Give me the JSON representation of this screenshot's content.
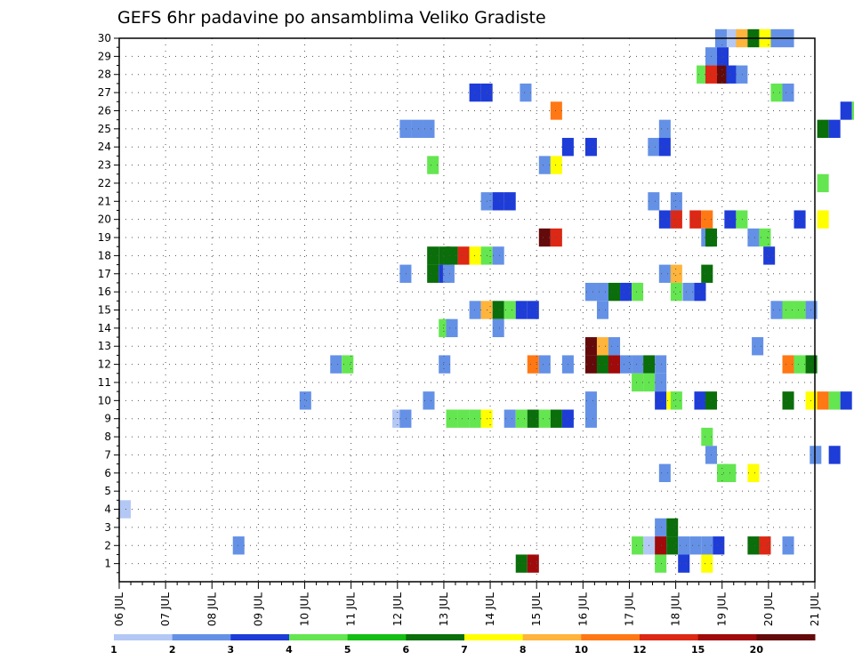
{
  "chart_data": {
    "type": "heatmap",
    "title": "GEFS 6hr padavine po ansamblima Veliko Gradiste",
    "y_ticks": [
      "1",
      "2",
      "3",
      "4",
      "5",
      "6",
      "7",
      "8",
      "9",
      "10",
      "11",
      "12",
      "13",
      "14",
      "15",
      "16",
      "17",
      "18",
      "19",
      "20",
      "21",
      "22",
      "23",
      "24",
      "25",
      "26",
      "27",
      "28",
      "29",
      "30"
    ],
    "x_ticks": [
      "06 JUL",
      "07 JUL",
      "08 JUL",
      "09 JUL",
      "10 JUL",
      "11 JUL",
      "12 JUL",
      "13 JUL",
      "14 JUL",
      "15 JUL",
      "16 JUL",
      "17 JUL",
      "18 JUL",
      "19 JUL",
      "20 JUL",
      "21 JUL"
    ],
    "x_range": [
      0,
      15
    ],
    "y_range": [
      0,
      30
    ],
    "grid": true,
    "colorbar": {
      "levels": [
        "1",
        "2",
        "3",
        "4",
        "5",
        "6",
        "7",
        "8",
        "10",
        "12",
        "15",
        "20"
      ],
      "colors": [
        "#b4c8f5",
        "#6491e6",
        "#1e3cd7",
        "#64e650",
        "#14be14",
        "#0a6e0a",
        "#ffff00",
        "#ffb43c",
        "#ff7814",
        "#dc2814",
        "#a00a0a",
        "#640a0a"
      ]
    },
    "cells": [
      [
        13.09,
        30,
        12
      ],
      [
        13.3,
        30,
        7
      ],
      [
        13.55,
        30,
        5
      ],
      [
        13.8,
        30,
        6
      ],
      [
        12.85,
        30,
        1
      ],
      [
        14.05,
        30,
        1
      ],
      [
        14.3,
        30,
        1
      ],
      [
        12.64,
        29,
        1
      ],
      [
        12.89,
        29,
        2
      ],
      [
        12.45,
        28,
        3
      ],
      [
        12.64,
        28,
        9
      ],
      [
        12.89,
        28,
        11
      ],
      [
        13.09,
        28,
        2
      ],
      [
        13.3,
        28,
        1
      ],
      [
        7.55,
        27,
        2
      ],
      [
        7.8,
        27,
        2
      ],
      [
        8.64,
        27,
        1
      ],
      [
        14.05,
        27,
        3
      ],
      [
        14.3,
        27,
        1
      ],
      [
        9.3,
        26,
        8
      ],
      [
        15.55,
        26,
        2
      ],
      [
        15.8,
        26,
        3
      ],
      [
        6.05,
        25,
        1
      ],
      [
        6.3,
        25,
        1
      ],
      [
        6.55,
        25,
        1
      ],
      [
        11.64,
        25,
        1
      ],
      [
        15.05,
        25,
        5
      ],
      [
        15.3,
        25,
        2
      ],
      [
        9.55,
        24,
        2
      ],
      [
        10.05,
        24,
        2
      ],
      [
        11.4,
        24,
        1
      ],
      [
        11.64,
        24,
        2
      ],
      [
        6.64,
        23,
        3
      ],
      [
        9.05,
        23,
        1
      ],
      [
        9.3,
        23,
        6
      ],
      [
        15.05,
        22,
        3
      ],
      [
        7.8,
        21,
        1
      ],
      [
        8.05,
        21,
        2
      ],
      [
        8.3,
        21,
        2
      ],
      [
        11.4,
        21,
        1
      ],
      [
        11.89,
        21,
        1
      ],
      [
        11.64,
        20,
        2
      ],
      [
        11.89,
        20,
        9
      ],
      [
        12.3,
        20,
        9
      ],
      [
        12.55,
        20,
        8
      ],
      [
        13.05,
        20,
        2
      ],
      [
        13.3,
        20,
        3
      ],
      [
        14.55,
        20,
        2
      ],
      [
        15.05,
        20,
        6
      ],
      [
        9.05,
        19,
        11
      ],
      [
        9.3,
        19,
        9
      ],
      [
        12.55,
        19,
        1
      ],
      [
        12.64,
        19,
        5
      ],
      [
        13.55,
        19,
        1
      ],
      [
        13.8,
        19,
        3
      ],
      [
        6.64,
        18,
        5
      ],
      [
        6.89,
        18,
        5
      ],
      [
        7.05,
        18,
        5
      ],
      [
        7.3,
        18,
        9
      ],
      [
        7.55,
        18,
        6
      ],
      [
        7.8,
        18,
        3
      ],
      [
        8.05,
        18,
        1
      ],
      [
        13.89,
        18,
        2
      ],
      [
        6.05,
        17,
        1
      ],
      [
        6.64,
        17,
        5
      ],
      [
        6.89,
        17,
        2
      ],
      [
        6.98,
        17,
        1
      ],
      [
        11.64,
        17,
        1
      ],
      [
        11.89,
        17,
        7
      ],
      [
        12.55,
        17,
        5
      ],
      [
        10.05,
        16,
        1
      ],
      [
        10.3,
        16,
        1
      ],
      [
        10.55,
        16,
        5
      ],
      [
        10.8,
        16,
        2
      ],
      [
        11.05,
        16,
        3
      ],
      [
        11.89,
        16,
        3
      ],
      [
        12.15,
        16,
        1
      ],
      [
        12.4,
        16,
        2
      ],
      [
        7.55,
        15,
        1
      ],
      [
        7.8,
        15,
        7
      ],
      [
        8.05,
        15,
        5
      ],
      [
        8.3,
        15,
        3
      ],
      [
        8.55,
        15,
        2
      ],
      [
        8.8,
        15,
        2
      ],
      [
        10.3,
        15,
        1
      ],
      [
        14.05,
        15,
        1
      ],
      [
        14.3,
        15,
        3
      ],
      [
        14.55,
        15,
        3
      ],
      [
        14.8,
        15,
        1
      ],
      [
        6.89,
        14,
        3
      ],
      [
        7.05,
        14,
        1
      ],
      [
        8.05,
        14,
        1
      ],
      [
        10.05,
        13,
        11
      ],
      [
        10.3,
        13,
        7
      ],
      [
        10.55,
        13,
        1
      ],
      [
        13.64,
        13,
        1
      ],
      [
        4.55,
        12,
        1
      ],
      [
        4.8,
        12,
        3
      ],
      [
        6.89,
        12,
        1
      ],
      [
        8.8,
        12,
        8
      ],
      [
        9.05,
        12,
        1
      ],
      [
        9.55,
        12,
        1
      ],
      [
        10.05,
        12,
        11
      ],
      [
        10.3,
        12,
        5
      ],
      [
        10.55,
        12,
        10
      ],
      [
        10.8,
        12,
        1
      ],
      [
        11.05,
        12,
        1
      ],
      [
        11.3,
        12,
        5
      ],
      [
        11.55,
        12,
        1
      ],
      [
        14.3,
        12,
        8
      ],
      [
        14.55,
        12,
        3
      ],
      [
        14.8,
        12,
        5
      ],
      [
        11.05,
        11,
        3
      ],
      [
        11.3,
        11,
        3
      ],
      [
        11.55,
        11,
        1
      ],
      [
        3.89,
        10,
        1
      ],
      [
        6.55,
        10,
        1
      ],
      [
        10.05,
        10,
        1
      ],
      [
        11.55,
        10,
        2
      ],
      [
        11.8,
        10,
        6
      ],
      [
        11.89,
        10,
        3
      ],
      [
        12.4,
        10,
        2
      ],
      [
        12.64,
        10,
        5
      ],
      [
        14.3,
        10,
        5
      ],
      [
        14.8,
        10,
        6
      ],
      [
        15.05,
        10,
        8
      ],
      [
        15.3,
        10,
        3
      ],
      [
        15.55,
        10,
        2
      ],
      [
        5.89,
        9,
        13
      ],
      [
        6.05,
        9,
        1
      ],
      [
        7.05,
        9,
        3
      ],
      [
        7.3,
        9,
        3
      ],
      [
        7.55,
        9,
        3
      ],
      [
        7.8,
        9,
        6
      ],
      [
        8.3,
        9,
        1
      ],
      [
        8.55,
        9,
        3
      ],
      [
        8.8,
        9,
        5
      ],
      [
        9.05,
        9,
        3
      ],
      [
        9.3,
        9,
        5
      ],
      [
        9.55,
        9,
        2
      ],
      [
        10.05,
        9,
        1
      ],
      [
        12.55,
        8,
        3
      ],
      [
        12.64,
        7,
        1
      ],
      [
        14.89,
        7,
        1
      ],
      [
        15.3,
        7,
        2
      ],
      [
        11.64,
        6,
        1
      ],
      [
        12.89,
        6,
        3
      ],
      [
        13.05,
        6,
        3
      ],
      [
        13.55,
        6,
        6
      ],
      [
        0,
        4,
        0
      ],
      [
        11.55,
        3,
        1
      ],
      [
        11.8,
        3,
        5
      ],
      [
        2.45,
        2,
        1
      ],
      [
        11.05,
        2,
        3
      ],
      [
        11.3,
        2,
        12
      ],
      [
        11.55,
        2,
        10
      ],
      [
        11.8,
        2,
        5
      ],
      [
        12.05,
        2,
        1
      ],
      [
        12.3,
        2,
        1
      ],
      [
        12.55,
        2,
        1
      ],
      [
        12.8,
        2,
        2
      ],
      [
        13.55,
        2,
        5
      ],
      [
        13.8,
        2,
        9
      ],
      [
        14.3,
        2,
        1
      ],
      [
        8.55,
        1,
        5
      ],
      [
        8.8,
        1,
        10
      ],
      [
        11.55,
        1,
        3
      ],
      [
        12.05,
        1,
        2
      ],
      [
        12.55,
        1,
        6
      ],
      [
        11.3,
        0.2,
        1
      ]
    ]
  }
}
